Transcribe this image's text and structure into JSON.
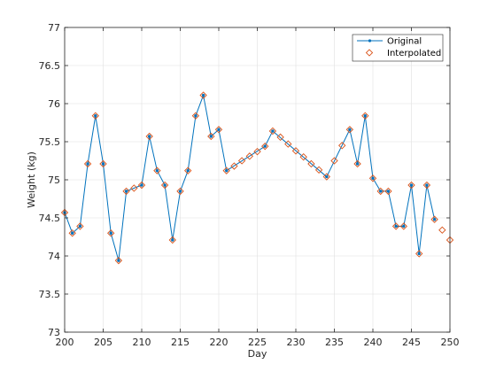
{
  "chart_data": {
    "type": "line",
    "xlabel": "Day",
    "ylabel": "Weight (kg)",
    "xlim": [
      200,
      250
    ],
    "ylim": [
      73,
      77
    ],
    "xticks": [
      200,
      205,
      210,
      215,
      220,
      225,
      230,
      235,
      240,
      245,
      250
    ],
    "yticks": [
      73,
      73.5,
      74,
      74.5,
      75,
      75.5,
      76,
      76.5,
      77
    ],
    "grid": true,
    "legend_position": "top-right",
    "series": [
      {
        "name": "Original",
        "style": "line-with-dots",
        "color": "#0072BD",
        "x": [
          200,
          201,
          202,
          203,
          204,
          205,
          206,
          207,
          208,
          210,
          211,
          212,
          213,
          214,
          215,
          216,
          217,
          218,
          219,
          220,
          221,
          226,
          227,
          234,
          237,
          238,
          239,
          240,
          241,
          242,
          243,
          244,
          245,
          246,
          247,
          248
        ],
        "y": [
          74.57,
          74.3,
          74.39,
          75.21,
          75.84,
          75.21,
          74.3,
          73.94,
          74.85,
          74.93,
          75.57,
          75.12,
          74.93,
          74.21,
          74.85,
          75.12,
          75.84,
          76.11,
          75.57,
          75.66,
          75.12,
          75.44,
          75.64,
          75.04,
          75.66,
          75.21,
          75.84,
          75.02,
          74.85,
          74.85,
          74.39,
          74.39,
          74.93,
          74.03,
          74.93,
          74.48
        ]
      },
      {
        "name": "Interpolated",
        "style": "markers",
        "color": "#D95319",
        "x": [
          200,
          201,
          202,
          203,
          204,
          205,
          206,
          207,
          208,
          209,
          210,
          211,
          212,
          213,
          214,
          215,
          216,
          217,
          218,
          219,
          220,
          221,
          222,
          223,
          224,
          225,
          226,
          227,
          228,
          229,
          230,
          231,
          232,
          233,
          234,
          235,
          236,
          237,
          238,
          239,
          240,
          241,
          242,
          243,
          244,
          245,
          246,
          247,
          248,
          249,
          250
        ],
        "y": [
          74.57,
          74.3,
          74.39,
          75.21,
          75.84,
          75.21,
          74.3,
          73.94,
          74.85,
          74.89,
          74.93,
          75.57,
          75.12,
          74.93,
          74.21,
          74.85,
          75.12,
          75.84,
          76.11,
          75.57,
          75.66,
          75.12,
          75.18,
          75.25,
          75.31,
          75.37,
          75.44,
          75.64,
          75.56,
          75.47,
          75.38,
          75.3,
          75.21,
          75.13,
          75.04,
          75.25,
          75.45,
          75.66,
          75.21,
          75.84,
          75.02,
          74.85,
          74.85,
          74.39,
          74.39,
          74.93,
          74.03,
          74.93,
          74.48,
          74.34,
          74.21
        ]
      }
    ]
  }
}
